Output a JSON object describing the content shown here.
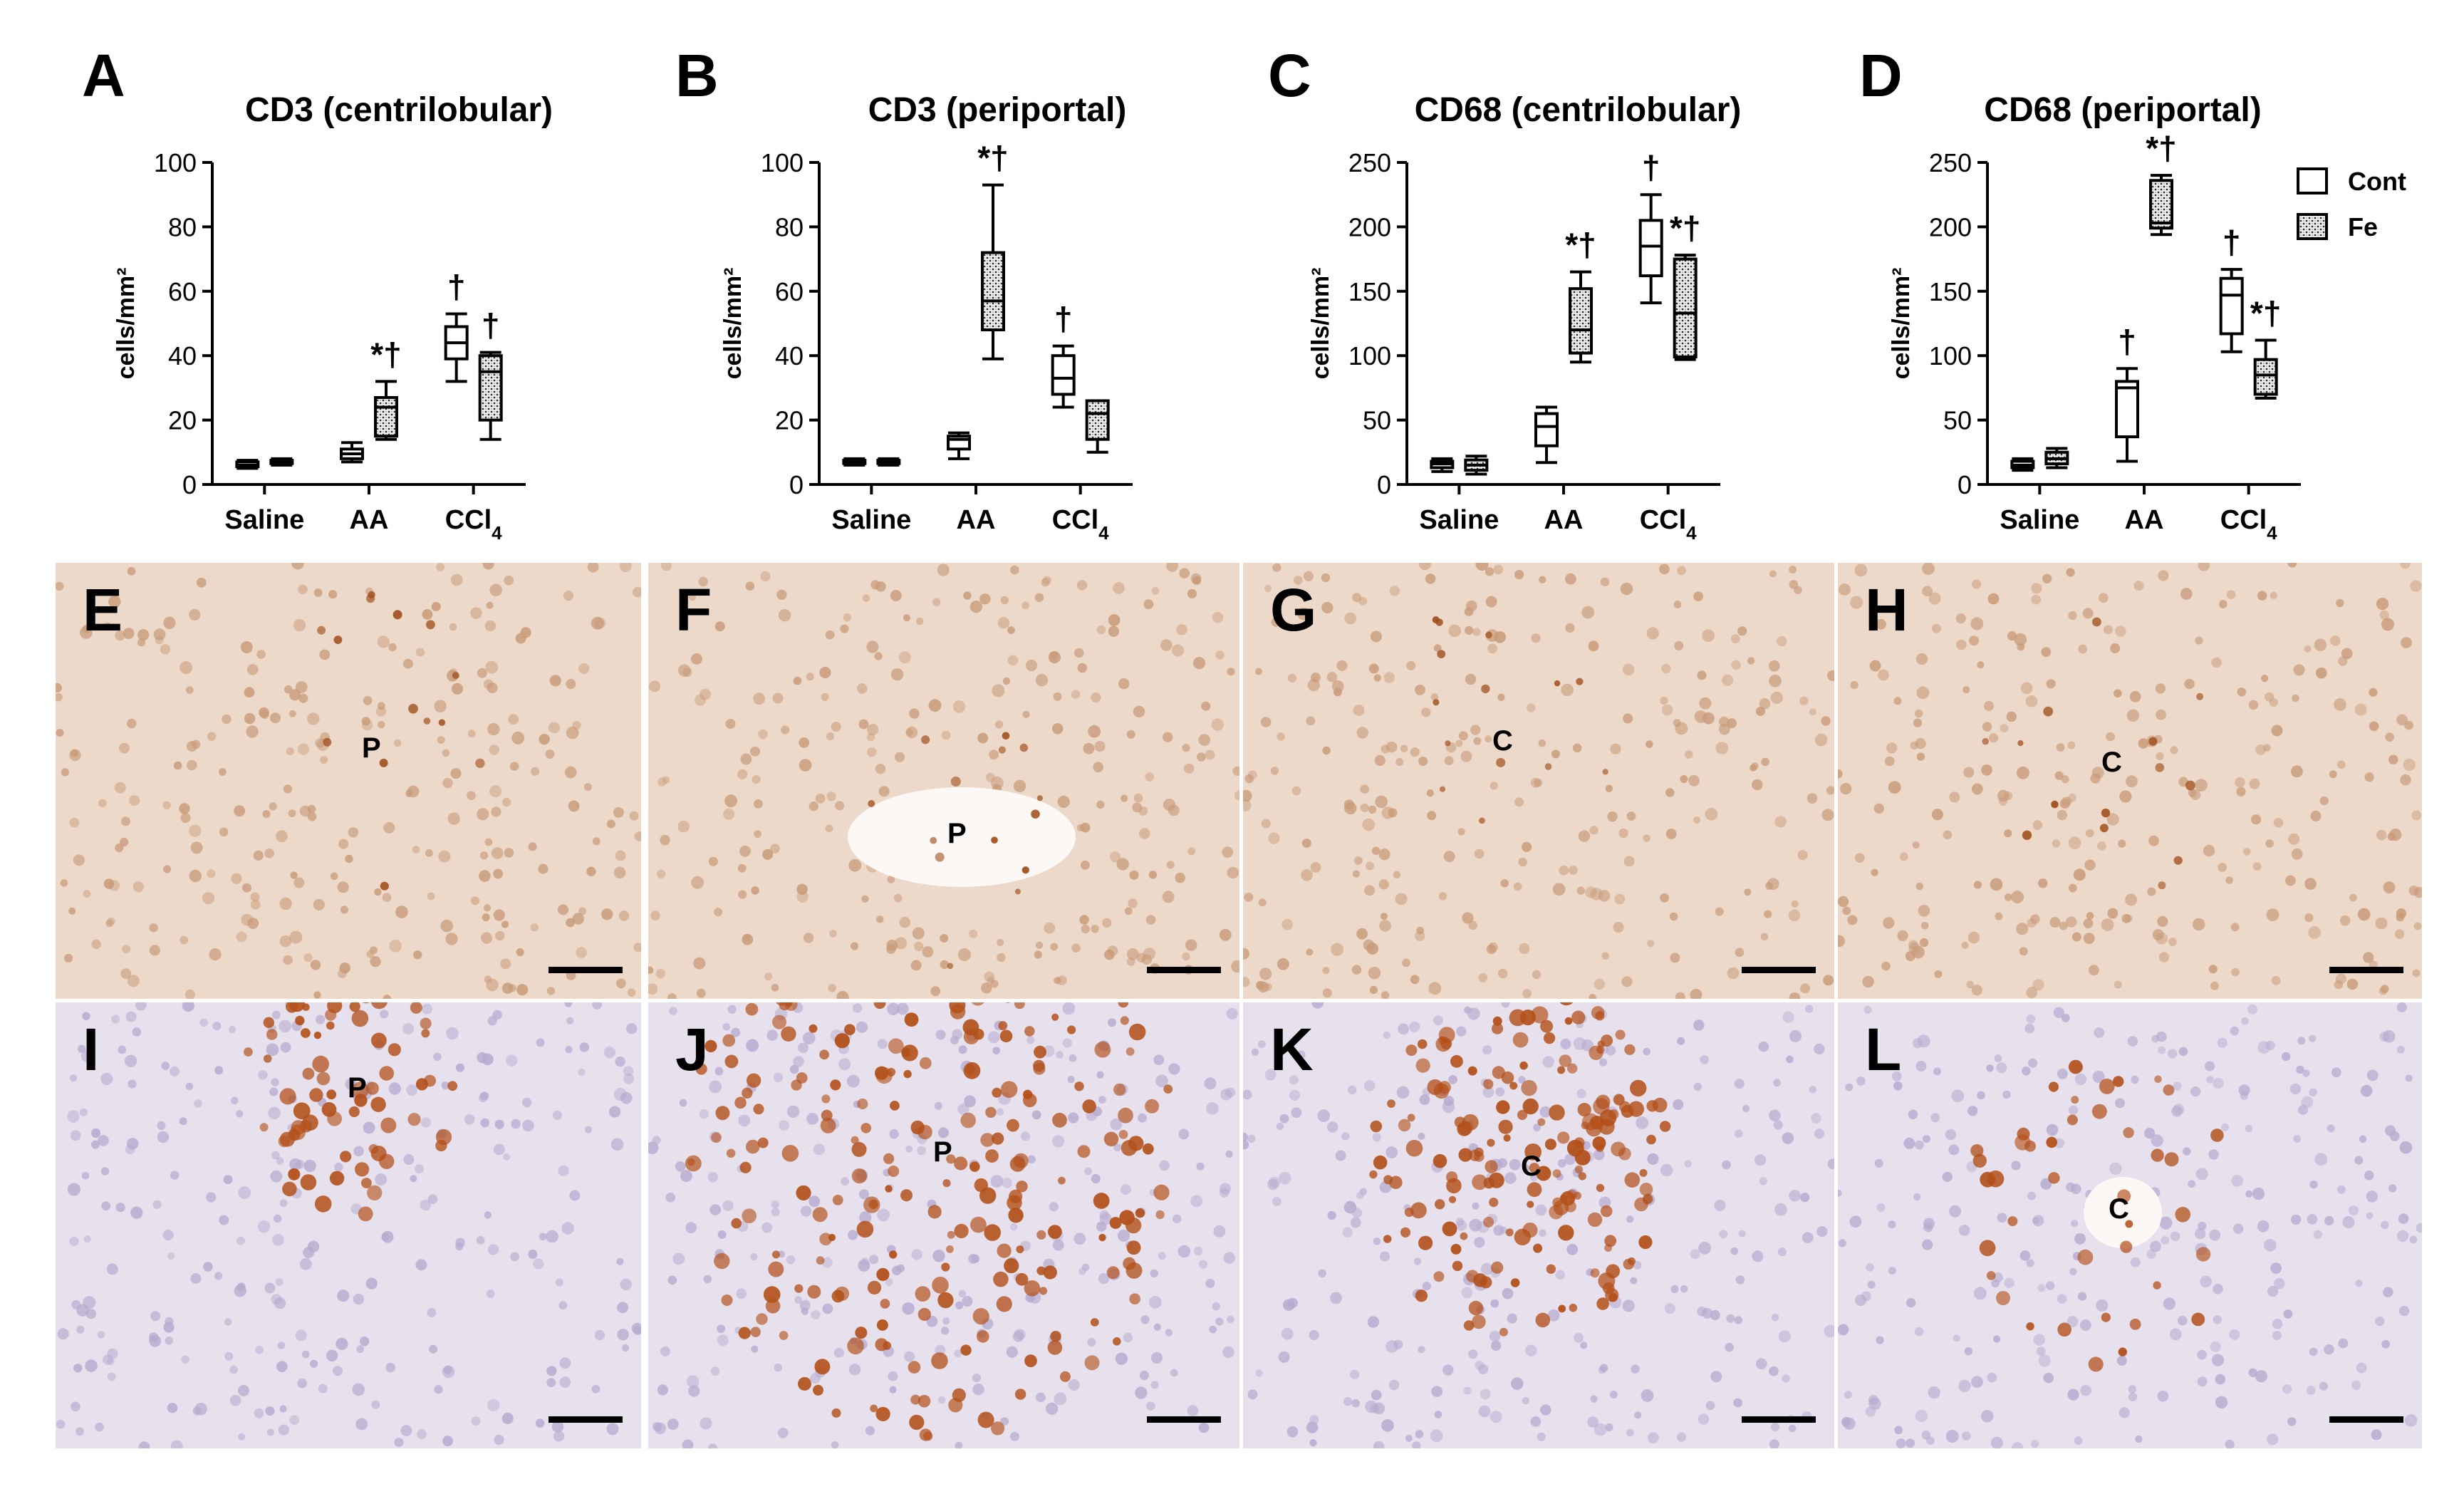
{
  "chart_data": [
    {
      "panel": "A",
      "type": "box",
      "title": "CD3 (centrilobular)",
      "ylabel": "cells/mm²",
      "ylim": [
        0,
        100
      ],
      "yticks": [
        0,
        20,
        40,
        60,
        80,
        100
      ],
      "categories": [
        "Saline",
        "AA",
        "CCl4"
      ],
      "series": [
        {
          "name": "Cont",
          "boxes": [
            {
              "min": 5,
              "q1": 5.5,
              "median": 6,
              "q3": 7,
              "max": 7.5,
              "annotation": ""
            },
            {
              "min": 7,
              "q1": 8,
              "median": 9.5,
              "q3": 11,
              "max": 13,
              "annotation": ""
            },
            {
              "min": 32,
              "q1": 39,
              "median": 44,
              "q3": 49,
              "max": 53,
              "annotation": "†"
            }
          ]
        },
        {
          "name": "Fe",
          "boxes": [
            {
              "min": 6,
              "q1": 6.5,
              "median": 7,
              "q3": 7.5,
              "max": 8,
              "annotation": ""
            },
            {
              "min": 14,
              "q1": 15,
              "median": 24,
              "q3": 27,
              "max": 32,
              "annotation": "*†"
            },
            {
              "min": 14,
              "q1": 20,
              "median": 35,
              "q3": 40,
              "max": 41,
              "annotation": "†"
            }
          ]
        }
      ]
    },
    {
      "panel": "B",
      "type": "box",
      "title": "CD3 (periportal)",
      "ylabel": "cells/mm²",
      "ylim": [
        0,
        100
      ],
      "yticks": [
        0,
        20,
        40,
        60,
        80,
        100
      ],
      "categories": [
        "Saline",
        "AA",
        "CCl4"
      ],
      "series": [
        {
          "name": "Cont",
          "boxes": [
            {
              "min": 6,
              "q1": 6.5,
              "median": 7,
              "q3": 7.5,
              "max": 8,
              "annotation": ""
            },
            {
              "min": 8,
              "q1": 11,
              "median": 14,
              "q3": 15,
              "max": 16,
              "annotation": ""
            },
            {
              "min": 24,
              "q1": 28,
              "median": 33,
              "q3": 40,
              "max": 43,
              "annotation": "†"
            }
          ]
        },
        {
          "name": "Fe",
          "boxes": [
            {
              "min": 6,
              "q1": 6.5,
              "median": 7,
              "q3": 7.5,
              "max": 8,
              "annotation": ""
            },
            {
              "min": 39,
              "q1": 48,
              "median": 57,
              "q3": 72,
              "max": 93,
              "annotation": "*†"
            },
            {
              "min": 10,
              "q1": 14,
              "median": 22,
              "q3": 26,
              "max": 26,
              "annotation": ""
            }
          ]
        }
      ]
    },
    {
      "panel": "C",
      "type": "box",
      "title": "CD68 (centrilobular)",
      "ylabel": "cells/mm²",
      "ylim": [
        0,
        250
      ],
      "yticks": [
        0,
        50,
        100,
        150,
        200,
        250
      ],
      "categories": [
        "Saline",
        "AA",
        "CCl4"
      ],
      "series": [
        {
          "name": "Cont",
          "boxes": [
            {
              "min": 10,
              "q1": 13,
              "median": 16,
              "q3": 18,
              "max": 20,
              "annotation": ""
            },
            {
              "min": 17,
              "q1": 30,
              "median": 45,
              "q3": 55,
              "max": 60,
              "annotation": ""
            },
            {
              "min": 141,
              "q1": 162,
              "median": 185,
              "q3": 205,
              "max": 225,
              "annotation": "†"
            }
          ]
        },
        {
          "name": "Fe",
          "boxes": [
            {
              "min": 8,
              "q1": 11,
              "median": 15,
              "q3": 19,
              "max": 22,
              "annotation": ""
            },
            {
              "min": 95,
              "q1": 102,
              "median": 120,
              "q3": 152,
              "max": 165,
              "annotation": "*†"
            },
            {
              "min": 97,
              "q1": 99,
              "median": 133,
              "q3": 175,
              "max": 178,
              "annotation": "*†"
            }
          ]
        }
      ]
    },
    {
      "panel": "D",
      "type": "box",
      "title": "CD68 (periportal)",
      "ylabel": "cells/mm²",
      "ylim": [
        0,
        250
      ],
      "yticks": [
        0,
        50,
        100,
        150,
        200,
        250
      ],
      "categories": [
        "Saline",
        "AA",
        "CCl4"
      ],
      "series": [
        {
          "name": "Cont",
          "boxes": [
            {
              "min": 11,
              "q1": 13,
              "median": 15,
              "q3": 18,
              "max": 20,
              "annotation": ""
            },
            {
              "min": 18,
              "q1": 37,
              "median": 75,
              "q3": 80,
              "max": 90,
              "annotation": "†"
            },
            {
              "min": 103,
              "q1": 117,
              "median": 147,
              "q3": 160,
              "max": 167,
              "annotation": "†"
            }
          ]
        },
        {
          "name": "Fe",
          "boxes": [
            {
              "min": 13,
              "q1": 16,
              "median": 20,
              "q3": 25,
              "max": 28,
              "annotation": ""
            },
            {
              "min": 194,
              "q1": 199,
              "median": 203,
              "q3": 236,
              "max": 240,
              "annotation": "*†"
            },
            {
              "min": 67,
              "q1": 70,
              "median": 85,
              "q3": 97,
              "max": 112,
              "annotation": "*†"
            }
          ]
        }
      ]
    }
  ],
  "legend": {
    "items": [
      {
        "name": "Cont",
        "fill": "#ffffff"
      },
      {
        "name": "Fe",
        "fill": "stipple"
      }
    ]
  },
  "micrographs": [
    {
      "letter": "E",
      "region": "P",
      "stain": "cd3",
      "theme": "cd3-centri"
    },
    {
      "letter": "F",
      "region": "P",
      "stain": "cd3",
      "theme": "cd3-portal"
    },
    {
      "letter": "G",
      "region": "C",
      "stain": "cd3",
      "theme": "cd3-centri-cv"
    },
    {
      "letter": "H",
      "region": "C",
      "stain": "cd3",
      "theme": "cd3-centri-cv2"
    },
    {
      "letter": "I",
      "region": "P",
      "stain": "cd68",
      "theme": "cd68-portal-thin"
    },
    {
      "letter": "J",
      "region": "P",
      "stain": "cd68",
      "theme": "cd68-portal-heavy"
    },
    {
      "letter": "K",
      "region": "C",
      "stain": "cd68",
      "theme": "cd68-cv-heavy"
    },
    {
      "letter": "L",
      "region": "C",
      "stain": "cd68",
      "theme": "cd68-cv-light"
    }
  ],
  "colors": {
    "axis": "#000000",
    "cd3_background": "#ecd9c9",
    "cd68_background": "#e6e1ec",
    "cd68_dab": "#b3501a",
    "cd3_dab": "#a2501f",
    "nucleus_cd3": "#c89a78",
    "nucleus_cd68": "#b6aad0"
  }
}
